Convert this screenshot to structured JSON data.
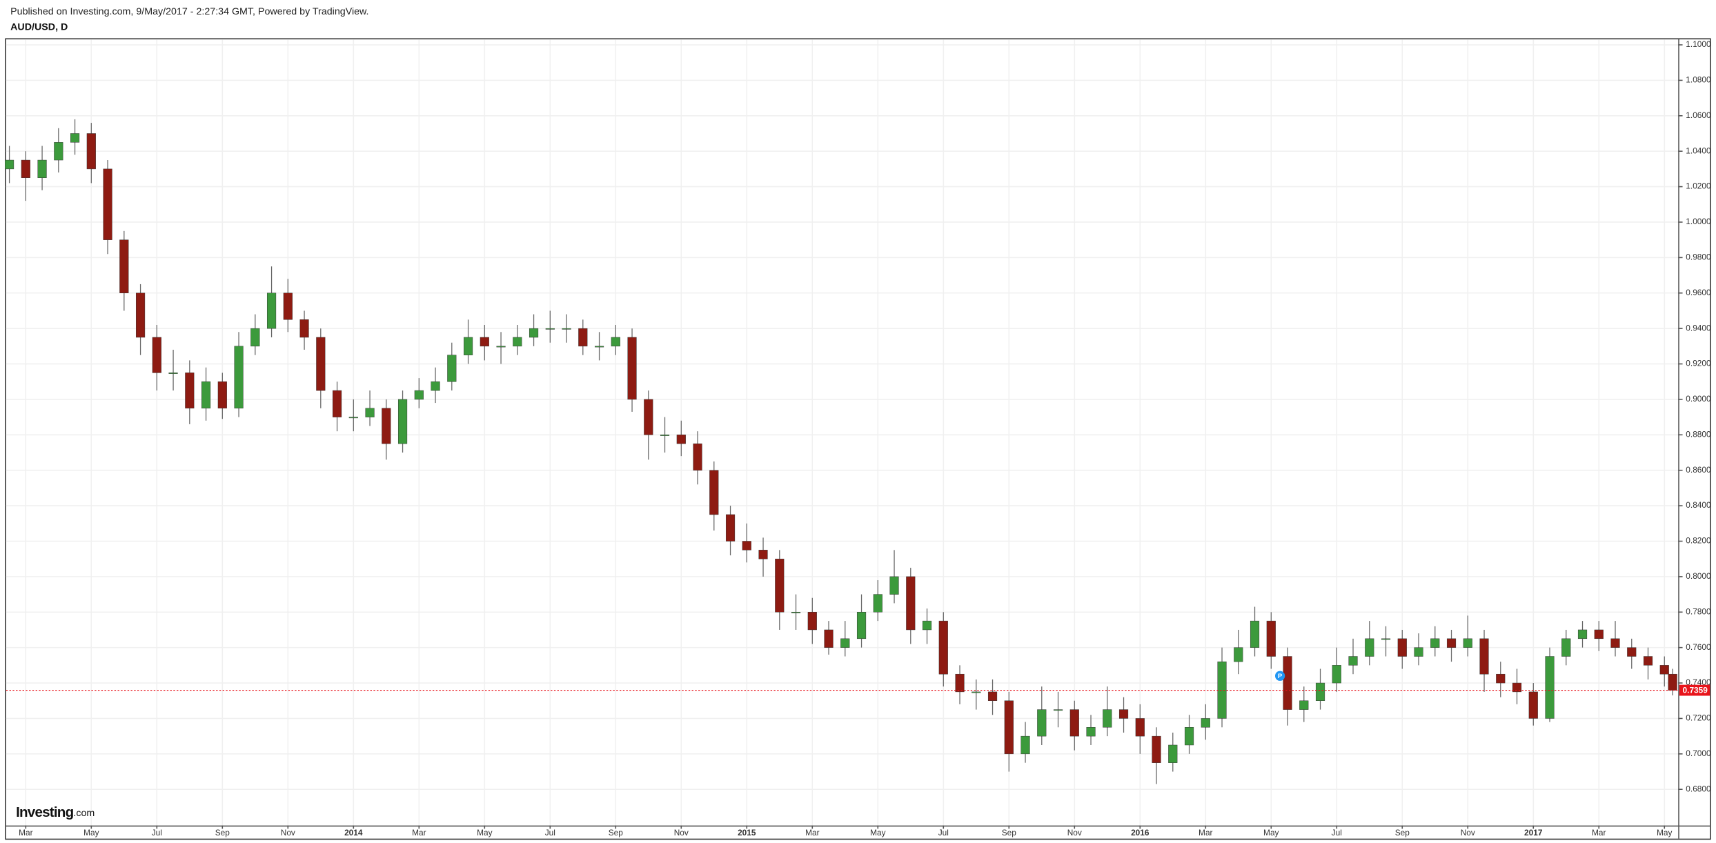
{
  "chart_data": {
    "type": "candlestick",
    "header": "Published on Investing.com, 9/May/2017 - 2:27:34 GMT, Powered by TradingView.",
    "title": "AUD/USD, D",
    "watermark": {
      "name": "Investing",
      "suffix": ".com"
    },
    "up_color": "#3c9a3c",
    "down_color": "#8e1b12",
    "wick_color": "#666666",
    "grid": true,
    "xlim": [
      1.4,
      52.42
    ],
    "ylim": [
      0.6596,
      1.1031
    ],
    "xticks": [
      {
        "value": 2,
        "label": "Mar"
      },
      {
        "value": 4,
        "label": "May"
      },
      {
        "value": 6,
        "label": "Jul"
      },
      {
        "value": 8,
        "label": "Sep"
      },
      {
        "value": 10,
        "label": "Nov"
      },
      {
        "value": 12,
        "label": "2014"
      },
      {
        "value": 14,
        "label": "Mar"
      },
      {
        "value": 16,
        "label": "May"
      },
      {
        "value": 18,
        "label": "Jul"
      },
      {
        "value": 20,
        "label": "Sep"
      },
      {
        "value": 22,
        "label": "Nov"
      },
      {
        "value": 24,
        "label": "2015"
      },
      {
        "value": 26,
        "label": "Mar"
      },
      {
        "value": 28,
        "label": "May"
      },
      {
        "value": 30,
        "label": "Jul"
      },
      {
        "value": 32,
        "label": "Sep"
      },
      {
        "value": 34,
        "label": "Nov"
      },
      {
        "value": 36,
        "label": "2016"
      },
      {
        "value": 38,
        "label": "Mar"
      },
      {
        "value": 40,
        "label": "May"
      },
      {
        "value": 42,
        "label": "Jul"
      },
      {
        "value": 44,
        "label": "Sep"
      },
      {
        "value": 46,
        "label": "Nov"
      },
      {
        "value": 48,
        "label": "2017"
      },
      {
        "value": 50,
        "label": "Mar"
      },
      {
        "value": 52,
        "label": "May"
      }
    ],
    "yticks": [
      {
        "value": 0.68,
        "label": "0.6800"
      },
      {
        "value": 0.7,
        "label": "0.7000"
      },
      {
        "value": 0.72,
        "label": "0.7200"
      },
      {
        "value": 0.74,
        "label": "0.7400"
      },
      {
        "value": 0.76,
        "label": "0.7600"
      },
      {
        "value": 0.78,
        "label": "0.7800"
      },
      {
        "value": 0.8,
        "label": "0.8000"
      },
      {
        "value": 0.82,
        "label": "0.8200"
      },
      {
        "value": 0.84,
        "label": "0.8400"
      },
      {
        "value": 0.86,
        "label": "0.8600"
      },
      {
        "value": 0.88,
        "label": "0.8800"
      },
      {
        "value": 0.9,
        "label": "0.9000"
      },
      {
        "value": 0.92,
        "label": "0.9200"
      },
      {
        "value": 0.94,
        "label": "0.9400"
      },
      {
        "value": 0.96,
        "label": "0.9600"
      },
      {
        "value": 0.98,
        "label": "0.9800"
      },
      {
        "value": 1.0,
        "label": "1.0000"
      },
      {
        "value": 1.02,
        "label": "1.0200"
      },
      {
        "value": 1.04,
        "label": "1.0400"
      },
      {
        "value": 1.06,
        "label": "1.0600"
      },
      {
        "value": 1.08,
        "label": "1.0800"
      },
      {
        "value": 1.1,
        "label": "1.1000"
      }
    ],
    "x": [
      1.5,
      2,
      2.5,
      3,
      3.5,
      4,
      4.5,
      5,
      5.5,
      6,
      6.5,
      7,
      7.5,
      8,
      8.5,
      9,
      9.5,
      10,
      10.5,
      11,
      11.5,
      12,
      12.5,
      13,
      13.5,
      14,
      14.5,
      15,
      15.5,
      16,
      16.5,
      17,
      17.5,
      18,
      18.5,
      19,
      19.5,
      20,
      20.5,
      21,
      21.5,
      22,
      22.5,
      23,
      23.5,
      24,
      24.5,
      25,
      25.5,
      26,
      26.5,
      27,
      27.5,
      28,
      28.5,
      29,
      29.5,
      30,
      30.5,
      31,
      31.5,
      32,
      32.5,
      33,
      33.5,
      34,
      34.5,
      35,
      35.5,
      36,
      36.5,
      37,
      37.5,
      38,
      38.5,
      39,
      39.5,
      40,
      40.5,
      41,
      41.5,
      42,
      42.5,
      43,
      43.5,
      44,
      44.5,
      45,
      45.5,
      46,
      46.5,
      47,
      47.5,
      48,
      48.5,
      49,
      49.5,
      50,
      50.5,
      51,
      51.5,
      52,
      52.25
    ],
    "open": [
      1.03,
      1.035,
      1.025,
      1.035,
      1.045,
      1.05,
      1.03,
      0.99,
      0.96,
      0.935,
      0.915,
      0.915,
      0.895,
      0.91,
      0.895,
      0.93,
      0.94,
      0.96,
      0.945,
      0.935,
      0.905,
      0.89,
      0.89,
      0.895,
      0.875,
      0.9,
      0.905,
      0.91,
      0.925,
      0.935,
      0.93,
      0.93,
      0.935,
      0.94,
      0.94,
      0.94,
      0.93,
      0.93,
      0.935,
      0.9,
      0.88,
      0.88,
      0.875,
      0.86,
      0.835,
      0.82,
      0.815,
      0.81,
      0.78,
      0.78,
      0.77,
      0.76,
      0.765,
      0.78,
      0.79,
      0.8,
      0.77,
      0.775,
      0.745,
      0.735,
      0.735,
      0.73,
      0.7,
      0.71,
      0.725,
      0.725,
      0.71,
      0.715,
      0.725,
      0.72,
      0.71,
      0.695,
      0.705,
      0.715,
      0.72,
      0.752,
      0.76,
      0.775,
      0.755,
      0.725,
      0.73,
      0.74,
      0.75,
      0.755,
      0.765,
      0.765,
      0.755,
      0.76,
      0.765,
      0.76,
      0.765,
      0.745,
      0.74,
      0.735,
      0.72,
      0.755,
      0.765,
      0.77,
      0.765,
      0.76,
      0.755,
      0.75,
      0.745
    ],
    "high": [
      1.043,
      1.04,
      1.043,
      1.053,
      1.058,
      1.056,
      1.035,
      0.995,
      0.965,
      0.942,
      0.928,
      0.922,
      0.918,
      0.915,
      0.938,
      0.948,
      0.975,
      0.968,
      0.95,
      0.94,
      0.91,
      0.9,
      0.905,
      0.9,
      0.905,
      0.912,
      0.918,
      0.932,
      0.945,
      0.942,
      0.938,
      0.942,
      0.948,
      0.95,
      0.948,
      0.945,
      0.938,
      0.942,
      0.94,
      0.905,
      0.89,
      0.888,
      0.882,
      0.865,
      0.84,
      0.83,
      0.822,
      0.815,
      0.79,
      0.788,
      0.775,
      0.775,
      0.79,
      0.798,
      0.815,
      0.805,
      0.782,
      0.78,
      0.75,
      0.742,
      0.742,
      0.735,
      0.718,
      0.738,
      0.735,
      0.73,
      0.722,
      0.738,
      0.732,
      0.728,
      0.715,
      0.712,
      0.722,
      0.728,
      0.76,
      0.77,
      0.783,
      0.78,
      0.76,
      0.738,
      0.748,
      0.76,
      0.765,
      0.775,
      0.772,
      0.77,
      0.768,
      0.772,
      0.77,
      0.778,
      0.77,
      0.752,
      0.748,
      0.74,
      0.76,
      0.77,
      0.775,
      0.775,
      0.775,
      0.765,
      0.76,
      0.755,
      0.748
    ],
    "low": [
      1.022,
      1.012,
      1.018,
      1.028,
      1.038,
      1.022,
      0.982,
      0.95,
      0.925,
      0.905,
      0.905,
      0.886,
      0.888,
      0.889,
      0.89,
      0.925,
      0.935,
      0.938,
      0.928,
      0.895,
      0.882,
      0.882,
      0.885,
      0.866,
      0.87,
      0.895,
      0.898,
      0.905,
      0.92,
      0.922,
      0.92,
      0.925,
      0.93,
      0.932,
      0.932,
      0.925,
      0.922,
      0.925,
      0.893,
      0.866,
      0.87,
      0.868,
      0.852,
      0.826,
      0.812,
      0.808,
      0.8,
      0.77,
      0.77,
      0.762,
      0.756,
      0.755,
      0.76,
      0.775,
      0.785,
      0.762,
      0.762,
      0.738,
      0.728,
      0.725,
      0.722,
      0.69,
      0.695,
      0.705,
      0.715,
      0.702,
      0.705,
      0.71,
      0.712,
      0.7,
      0.683,
      0.69,
      0.7,
      0.708,
      0.715,
      0.745,
      0.755,
      0.748,
      0.716,
      0.718,
      0.725,
      0.735,
      0.745,
      0.75,
      0.755,
      0.748,
      0.75,
      0.755,
      0.752,
      0.755,
      0.735,
      0.732,
      0.728,
      0.716,
      0.718,
      0.75,
      0.76,
      0.758,
      0.755,
      0.748,
      0.742,
      0.738,
      0.733
    ],
    "close": [
      1.035,
      1.025,
      1.035,
      1.045,
      1.05,
      1.03,
      0.99,
      0.96,
      0.935,
      0.915,
      0.915,
      0.895,
      0.91,
      0.895,
      0.93,
      0.94,
      0.96,
      0.945,
      0.935,
      0.905,
      0.89,
      0.89,
      0.895,
      0.875,
      0.9,
      0.905,
      0.91,
      0.925,
      0.935,
      0.93,
      0.93,
      0.935,
      0.94,
      0.94,
      0.94,
      0.93,
      0.93,
      0.935,
      0.9,
      0.88,
      0.88,
      0.875,
      0.86,
      0.835,
      0.82,
      0.815,
      0.81,
      0.78,
      0.78,
      0.77,
      0.76,
      0.765,
      0.78,
      0.79,
      0.8,
      0.77,
      0.775,
      0.745,
      0.735,
      0.735,
      0.73,
      0.7,
      0.71,
      0.725,
      0.725,
      0.71,
      0.715,
      0.725,
      0.72,
      0.71,
      0.695,
      0.705,
      0.715,
      0.72,
      0.752,
      0.76,
      0.775,
      0.755,
      0.725,
      0.73,
      0.74,
      0.75,
      0.755,
      0.765,
      0.765,
      0.755,
      0.76,
      0.765,
      0.76,
      0.765,
      0.745,
      0.74,
      0.735,
      0.72,
      0.755,
      0.765,
      0.77,
      0.765,
      0.76,
      0.755,
      0.75,
      0.745,
      0.7359
    ],
    "last_price": {
      "value": 0.7359,
      "color": "#e8141b"
    },
    "marker": {
      "x": 40.27,
      "y": 0.744,
      "label": "P",
      "color": "#2196f3"
    }
  }
}
